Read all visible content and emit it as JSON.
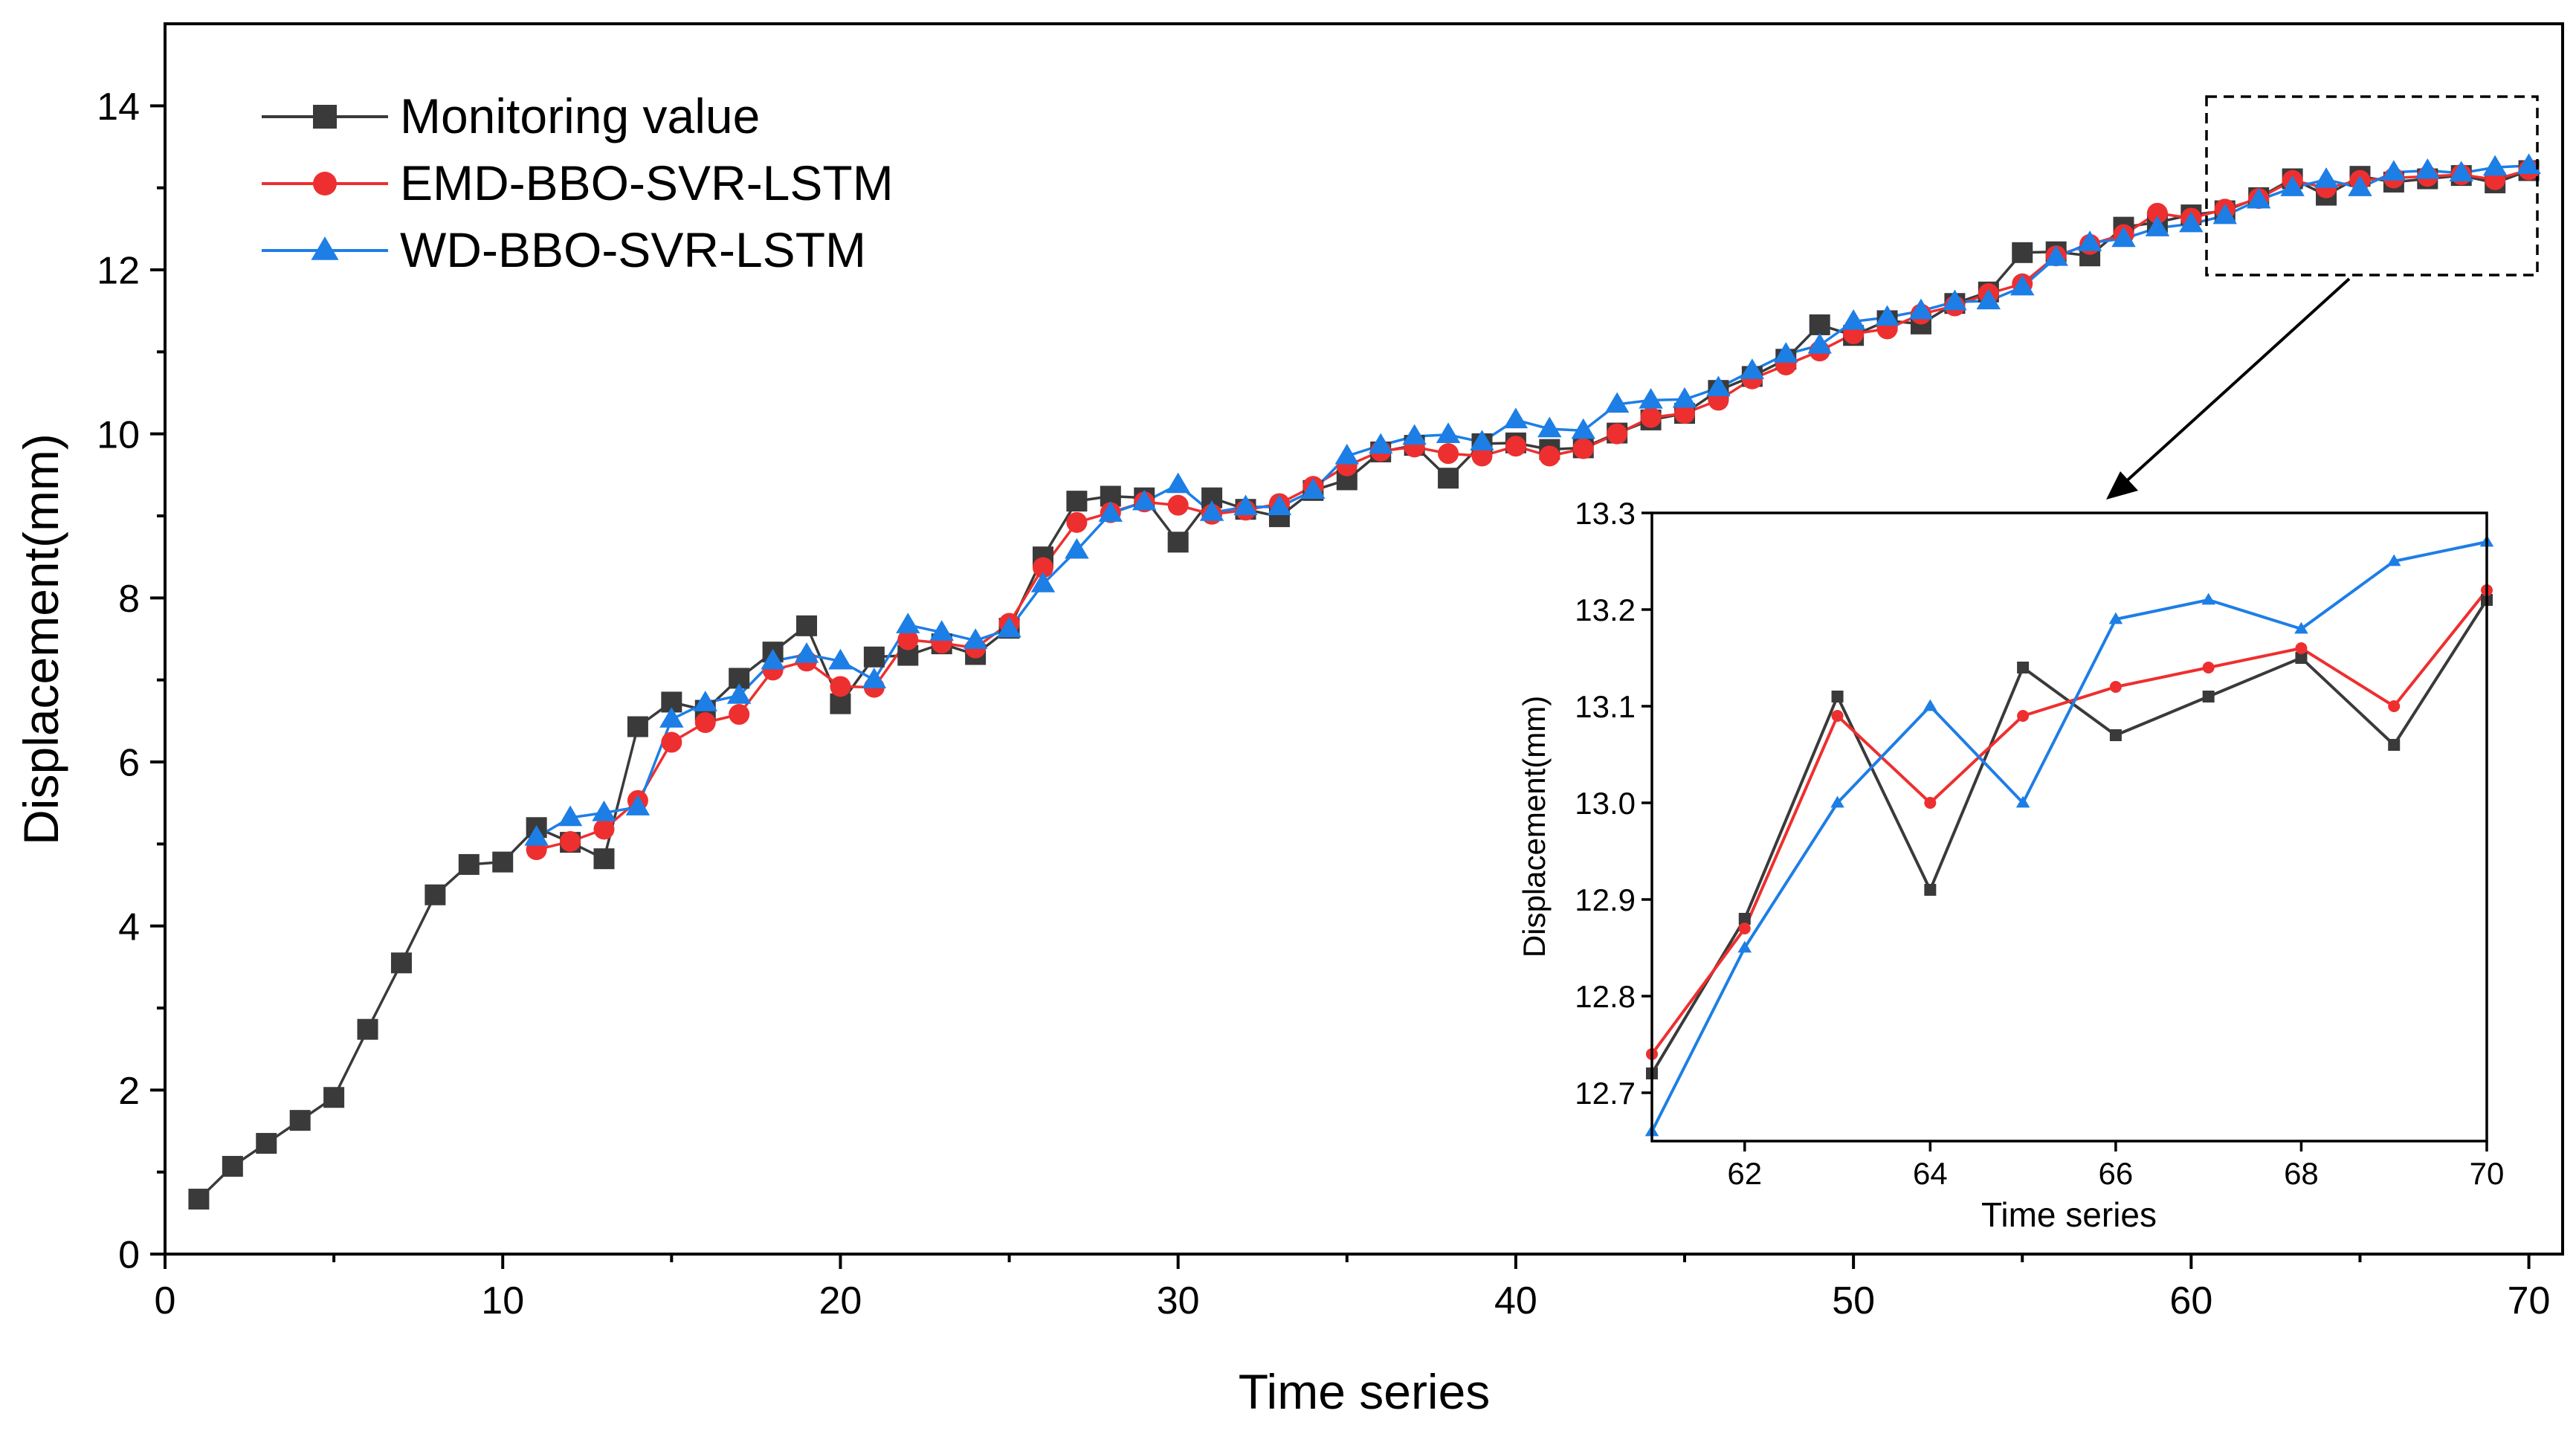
{
  "chart_data": [
    {
      "id": "main",
      "type": "line",
      "title": "",
      "xlabel": "Time series",
      "ylabel": "Displacement(mm)",
      "xlim": [
        0,
        71
      ],
      "ylim": [
        0,
        15
      ],
      "xticks": [
        0,
        10,
        20,
        30,
        40,
        50,
        60,
        70
      ],
      "yticks": [
        0,
        2,
        4,
        6,
        8,
        10,
        12,
        14
      ],
      "legend_position": "top-left",
      "series": [
        {
          "name": "Monitoring value",
          "color": "#3a3a3a",
          "marker": "square",
          "x": [
            1,
            2,
            3,
            4,
            5,
            6,
            7,
            8,
            9,
            10,
            11,
            12,
            13,
            14,
            15,
            16,
            17,
            18,
            19,
            20,
            21,
            22,
            23,
            24,
            25,
            26,
            27,
            28,
            29,
            30,
            31,
            32,
            33,
            34,
            35,
            36,
            37,
            38,
            39,
            40,
            41,
            42,
            43,
            44,
            45,
            46,
            47,
            48,
            49,
            50,
            51,
            52,
            53,
            54,
            55,
            56,
            57,
            58,
            59,
            60,
            61,
            62,
            63,
            64,
            65,
            66,
            67,
            68,
            69,
            70
          ],
          "y": [
            0.67,
            1.07,
            1.35,
            1.63,
            1.91,
            2.74,
            3.55,
            4.38,
            4.75,
            4.78,
            5.2,
            5.02,
            4.82,
            6.43,
            6.73,
            6.63,
            7.02,
            7.34,
            7.66,
            6.71,
            7.28,
            7.3,
            7.44,
            7.31,
            7.63,
            8.5,
            9.18,
            9.24,
            9.22,
            8.68,
            9.22,
            9.08,
            8.99,
            9.31,
            9.44,
            9.78,
            9.86,
            9.46,
            9.88,
            9.89,
            9.81,
            9.83,
            10.01,
            10.17,
            10.25,
            10.53,
            10.7,
            10.91,
            11.33,
            11.2,
            11.38,
            11.34,
            11.59,
            11.73,
            12.21,
            12.22,
            12.17,
            12.52,
            12.58,
            12.67,
            12.72,
            12.88,
            13.11,
            12.91,
            13.14,
            13.07,
            13.11,
            13.15,
            13.06,
            13.21
          ]
        },
        {
          "name": "EMD-BBO-SVR-LSTM",
          "color": "#ee2f2f",
          "marker": "circle",
          "x": [
            11,
            12,
            13,
            14,
            15,
            16,
            17,
            18,
            19,
            20,
            21,
            22,
            23,
            24,
            25,
            26,
            27,
            28,
            29,
            30,
            31,
            32,
            33,
            34,
            35,
            36,
            37,
            38,
            39,
            40,
            41,
            42,
            43,
            44,
            45,
            46,
            47,
            48,
            49,
            50,
            51,
            52,
            53,
            54,
            55,
            56,
            57,
            58,
            59,
            60,
            61,
            62,
            63,
            64,
            65,
            66,
            67,
            68,
            69,
            70
          ],
          "y": [
            4.93,
            5.03,
            5.18,
            5.53,
            6.24,
            6.48,
            6.58,
            7.12,
            7.23,
            6.92,
            6.91,
            7.49,
            7.45,
            7.39,
            7.69,
            8.37,
            8.92,
            9.04,
            9.17,
            9.13,
            9.02,
            9.07,
            9.15,
            9.36,
            9.61,
            9.79,
            9.84,
            9.76,
            9.73,
            9.85,
            9.73,
            9.82,
            10.0,
            10.2,
            10.25,
            10.41,
            10.67,
            10.84,
            11.01,
            11.22,
            11.28,
            11.46,
            11.56,
            11.71,
            11.83,
            12.17,
            12.31,
            12.43,
            12.69,
            12.63,
            12.74,
            12.87,
            13.09,
            13.0,
            13.09,
            13.12,
            13.14,
            13.16,
            13.1,
            13.22
          ]
        },
        {
          "name": "WD-BBO-SVR-LSTM",
          "color": "#1d7ee6",
          "marker": "triangle",
          "x": [
            11,
            12,
            13,
            14,
            15,
            16,
            17,
            18,
            19,
            20,
            21,
            22,
            23,
            24,
            25,
            26,
            27,
            28,
            29,
            30,
            31,
            32,
            33,
            34,
            35,
            36,
            37,
            38,
            39,
            40,
            41,
            42,
            43,
            44,
            45,
            46,
            47,
            48,
            49,
            50,
            51,
            52,
            53,
            54,
            55,
            56,
            57,
            58,
            59,
            60,
            61,
            62,
            63,
            64,
            65,
            66,
            67,
            68,
            69,
            70
          ],
          "y": [
            5.08,
            5.32,
            5.38,
            5.45,
            6.52,
            6.72,
            6.81,
            7.23,
            7.31,
            7.23,
            7.0,
            7.67,
            7.58,
            7.48,
            7.62,
            8.17,
            8.58,
            9.03,
            9.17,
            9.38,
            9.04,
            9.11,
            9.11,
            9.31,
            9.73,
            9.86,
            9.97,
            9.99,
            9.9,
            10.17,
            10.06,
            10.04,
            10.36,
            10.41,
            10.42,
            10.56,
            10.77,
            10.97,
            11.08,
            11.37,
            11.42,
            11.5,
            11.61,
            11.62,
            11.79,
            12.15,
            12.33,
            12.38,
            12.51,
            12.56,
            12.66,
            12.85,
            13.0,
            13.1,
            13.0,
            13.19,
            13.21,
            13.18,
            13.25,
            13.27
          ]
        }
      ]
    },
    {
      "id": "inset",
      "type": "line",
      "title": "",
      "xlabel": "Time series",
      "ylabel": "Displacement(mm)",
      "xlim": [
        61,
        70
      ],
      "ylim": [
        12.65,
        13.3
      ],
      "xticks": [
        62,
        64,
        66,
        68,
        70
      ],
      "yticks": [
        12.7,
        12.8,
        12.9,
        13.0,
        13.1,
        13.2,
        13.3
      ],
      "ytick_labels": [
        "12.7",
        "12.8",
        "12.9",
        "13.0",
        "13.1",
        "13.2",
        "13.3"
      ],
      "series": [
        {
          "name": "Monitoring value",
          "color": "#3a3a3a",
          "marker": "square",
          "x": [
            61,
            62,
            63,
            64,
            65,
            66,
            67,
            68,
            69,
            70
          ],
          "y": [
            12.72,
            12.88,
            13.11,
            12.91,
            13.14,
            13.07,
            13.11,
            13.15,
            13.06,
            13.21
          ]
        },
        {
          "name": "EMD-BBO-SVR-LSTM",
          "color": "#ee2f2f",
          "marker": "circle",
          "x": [
            61,
            62,
            63,
            64,
            65,
            66,
            67,
            68,
            69,
            70
          ],
          "y": [
            12.74,
            12.87,
            13.09,
            13.0,
            13.09,
            13.12,
            13.14,
            13.16,
            13.1,
            13.22
          ]
        },
        {
          "name": "WD-BBO-SVR-LSTM",
          "color": "#1d7ee6",
          "marker": "triangle",
          "x": [
            61,
            62,
            63,
            64,
            65,
            66,
            67,
            68,
            69,
            70
          ],
          "y": [
            12.66,
            12.85,
            13.0,
            13.1,
            13.0,
            13.19,
            13.21,
            13.18,
            13.25,
            13.27
          ]
        }
      ]
    }
  ]
}
